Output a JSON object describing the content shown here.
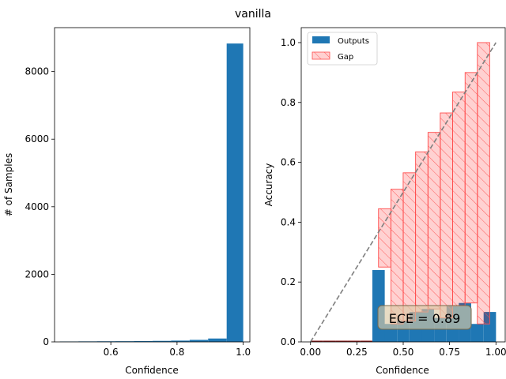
{
  "figure": {
    "title": "vanilla"
  },
  "colors": {
    "bar": "#1f77b4",
    "gap_fill": "rgba(255,0,0,0.18)",
    "gap_edge": "#ff4d4d",
    "diagonal": "#7f7f7f",
    "ece_box_fill": "rgba(218,202,164,0.65)",
    "ece_box_edge": "#7a6a4a"
  },
  "chart_data": [
    {
      "type": "bar",
      "title": "",
      "xlabel": "Confidence",
      "ylabel": "# of Samples",
      "xlim": [
        0.43,
        1.02
      ],
      "ylim": [
        0,
        9300
      ],
      "xticks": [
        0.6,
        0.8,
        1.0
      ],
      "xtick_labels": [
        "0.6",
        "0.8",
        "1.0"
      ],
      "yticks": [
        0,
        2000,
        4000,
        6000,
        8000
      ],
      "ytick_labels": [
        "0",
        "2000",
        "4000",
        "6000",
        "8000"
      ],
      "grid": false,
      "bins": [
        {
          "x0": 0.446,
          "x1": 0.502,
          "value": 12
        },
        {
          "x0": 0.502,
          "x1": 0.558,
          "value": 15
        },
        {
          "x0": 0.558,
          "x1": 0.614,
          "value": 18
        },
        {
          "x0": 0.614,
          "x1": 0.67,
          "value": 20
        },
        {
          "x0": 0.67,
          "x1": 0.726,
          "value": 24
        },
        {
          "x0": 0.726,
          "x1": 0.782,
          "value": 30
        },
        {
          "x0": 0.782,
          "x1": 0.838,
          "value": 38
        },
        {
          "x0": 0.838,
          "x1": 0.894,
          "value": 60
        },
        {
          "x0": 0.894,
          "x1": 0.95,
          "value": 100
        },
        {
          "x0": 0.95,
          "x1": 1.0,
          "value": 8830
        }
      ]
    },
    {
      "type": "bar",
      "title": "",
      "xlabel": "Confidence",
      "ylabel": "Accuracy",
      "xlim": [
        -0.05,
        1.05
      ],
      "ylim": [
        0,
        1.05
      ],
      "xticks": [
        0.0,
        0.25,
        0.5,
        0.75,
        1.0
      ],
      "xtick_labels": [
        "0.00",
        "0.25",
        "0.50",
        "0.75",
        "1.00"
      ],
      "yticks": [
        0.0,
        0.2,
        0.4,
        0.6,
        0.8,
        1.0
      ],
      "ytick_labels": [
        "0.0",
        "0.2",
        "0.4",
        "0.6",
        "0.8",
        "1.0"
      ],
      "grid": false,
      "legend": {
        "position": "top-left",
        "entries": [
          "Outputs",
          "Gap"
        ]
      },
      "bin_width": 0.0667,
      "series": [
        {
          "name": "Outputs",
          "x": [
            0.033,
            0.1,
            0.167,
            0.233,
            0.3,
            0.367,
            0.433,
            0.5,
            0.567,
            0.633,
            0.7,
            0.767,
            0.833,
            0.9,
            0.967
          ],
          "values": [
            0,
            0,
            0,
            0,
            0,
            0.24,
            0.06,
            0.07,
            0.1,
            0.11,
            0.08,
            0.12,
            0.13,
            0.06,
            0.1
          ]
        },
        {
          "name": "Gap",
          "x": [
            0.4,
            0.467,
            0.533,
            0.6,
            0.667,
            0.733,
            0.8,
            0.867,
            0.933
          ],
          "bottoms": [
            0.25,
            0.06,
            0.07,
            0.1,
            0.11,
            0.08,
            0.12,
            0.13,
            0.06
          ],
          "tops": [
            0.445,
            0.51,
            0.565,
            0.635,
            0.7,
            0.765,
            0.835,
            0.9,
            1.0
          ]
        }
      ],
      "diagonal": [
        [
          0,
          0
        ],
        [
          1,
          1
        ]
      ],
      "annotation": {
        "label": "ECE = 0.89",
        "x": 0.6,
        "y": 0.08
      }
    }
  ]
}
